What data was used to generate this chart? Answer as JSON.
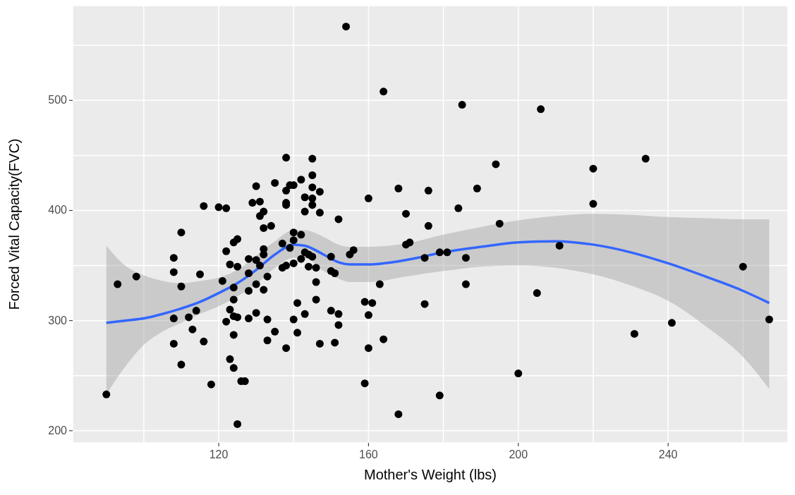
{
  "chart_data": {
    "type": "scatter",
    "xlabel": "Mother's Weight (lbs)",
    "ylabel": "Forced Vital Capacity(FVC)",
    "xlim": [
      81,
      272
    ],
    "ylim": [
      189,
      586
    ],
    "xticks": [
      {
        "value": 100,
        "label": null
      },
      120,
      {
        "value": 140,
        "label": null
      },
      160,
      {
        "value": 180,
        "label": null
      },
      200,
      {
        "value": 220,
        "label": null
      },
      240,
      {
        "value": 260,
        "label": null
      }
    ],
    "yticks": [
      200,
      {
        "value": 250,
        "label": null
      },
      300,
      {
        "value": 350,
        "label": null
      },
      400,
      {
        "value": 450,
        "label": null
      },
      500,
      {
        "value": 550,
        "label": null
      }
    ],
    "grid": true,
    "series": [
      {
        "marker": "circle",
        "color": "#000000",
        "x": [
          90,
          93,
          98,
          108,
          108,
          108,
          108,
          110,
          110,
          110,
          112,
          113,
          114,
          115,
          116,
          116,
          118,
          120,
          121,
          122,
          122,
          122,
          123,
          123,
          123,
          124,
          124,
          124,
          124,
          124,
          124,
          125,
          125,
          125,
          125,
          126,
          127,
          128,
          128,
          128,
          128,
          129,
          130,
          130,
          130,
          130,
          131,
          131,
          131,
          132,
          132,
          132,
          132,
          132,
          133,
          133,
          133,
          134,
          135,
          135,
          137,
          137,
          138,
          138,
          138,
          138,
          138,
          138,
          139,
          139,
          140,
          140,
          140,
          140,
          140,
          141,
          141,
          142,
          142,
          142,
          143,
          143,
          143,
          143,
          144,
          144,
          145,
          145,
          145,
          145,
          145,
          145,
          146,
          146,
          146,
          147,
          147,
          147,
          150,
          150,
          150,
          151,
          151,
          152,
          152,
          152,
          154,
          155,
          156,
          159,
          159,
          160,
          160,
          160,
          161,
          163,
          164,
          164,
          168,
          168,
          170,
          170,
          171,
          175,
          175,
          176,
          176,
          179,
          179,
          181,
          184,
          185,
          186,
          186,
          189,
          194,
          195,
          200,
          205,
          206,
          211,
          220,
          220,
          231,
          234,
          241,
          260,
          267
        ],
        "values": [
          233,
          333,
          340,
          357,
          344,
          302,
          279,
          380,
          331,
          260,
          303,
          292,
          309,
          342,
          404,
          281,
          242,
          403,
          336,
          402,
          363,
          299,
          310,
          265,
          351,
          257,
          287,
          319,
          330,
          304,
          371,
          374,
          206,
          349,
          303,
          245,
          245,
          356,
          327,
          302,
          343,
          407,
          422,
          355,
          307,
          333,
          408,
          395,
          350,
          384,
          399,
          365,
          328,
          360,
          282,
          340,
          301,
          386,
          425,
          290,
          370,
          348,
          448,
          418,
          407,
          405,
          275,
          350,
          423,
          366,
          423,
          380,
          373,
          352,
          301,
          316,
          289,
          428,
          378,
          356,
          412,
          399,
          362,
          306,
          360,
          349,
          447,
          432,
          421,
          411,
          405,
          358,
          348,
          335,
          319,
          417,
          398,
          279,
          358,
          345,
          309,
          343,
          280,
          392,
          306,
          296,
          567,
          360,
          364,
          317,
          243,
          411,
          305,
          275,
          316,
          333,
          508,
          283,
          420,
          215,
          397,
          369,
          371,
          357,
          315,
          418,
          386,
          362,
          232,
          362,
          402,
          496,
          357,
          333,
          420,
          442,
          388,
          252,
          325,
          492,
          368,
          438,
          406,
          288,
          447,
          298,
          349,
          301
        ]
      },
      {
        "type": "line",
        "color": "#3366ff",
        "x": [
          90,
          95,
          100,
          105,
          110,
          115,
          120,
          125,
          130,
          135,
          140,
          143,
          148,
          152,
          155,
          160,
          170,
          180,
          190,
          200,
          210,
          220,
          230,
          240,
          250,
          260,
          267
        ],
        "values": [
          298,
          300,
          302,
          306,
          311,
          317,
          325,
          334,
          346,
          360,
          369,
          368,
          360,
          353,
          351,
          351,
          355,
          362,
          367,
          371,
          372,
          369,
          362,
          352,
          340,
          327,
          316
        ],
        "lower": [
          233,
          258,
          278,
          290,
          298,
          306,
          313,
          322,
          333,
          348,
          357,
          357,
          345,
          338,
          335,
          335,
          340,
          345,
          349,
          350,
          348,
          342,
          332,
          318,
          295,
          267,
          238
        ],
        "upper": [
          368,
          350,
          341,
          336,
          334,
          336,
          339,
          346,
          359,
          372,
          382,
          382,
          376,
          369,
          367,
          367,
          370,
          378,
          385,
          391,
          395,
          397,
          396,
          394,
          393,
          392,
          392
        ]
      }
    ]
  }
}
